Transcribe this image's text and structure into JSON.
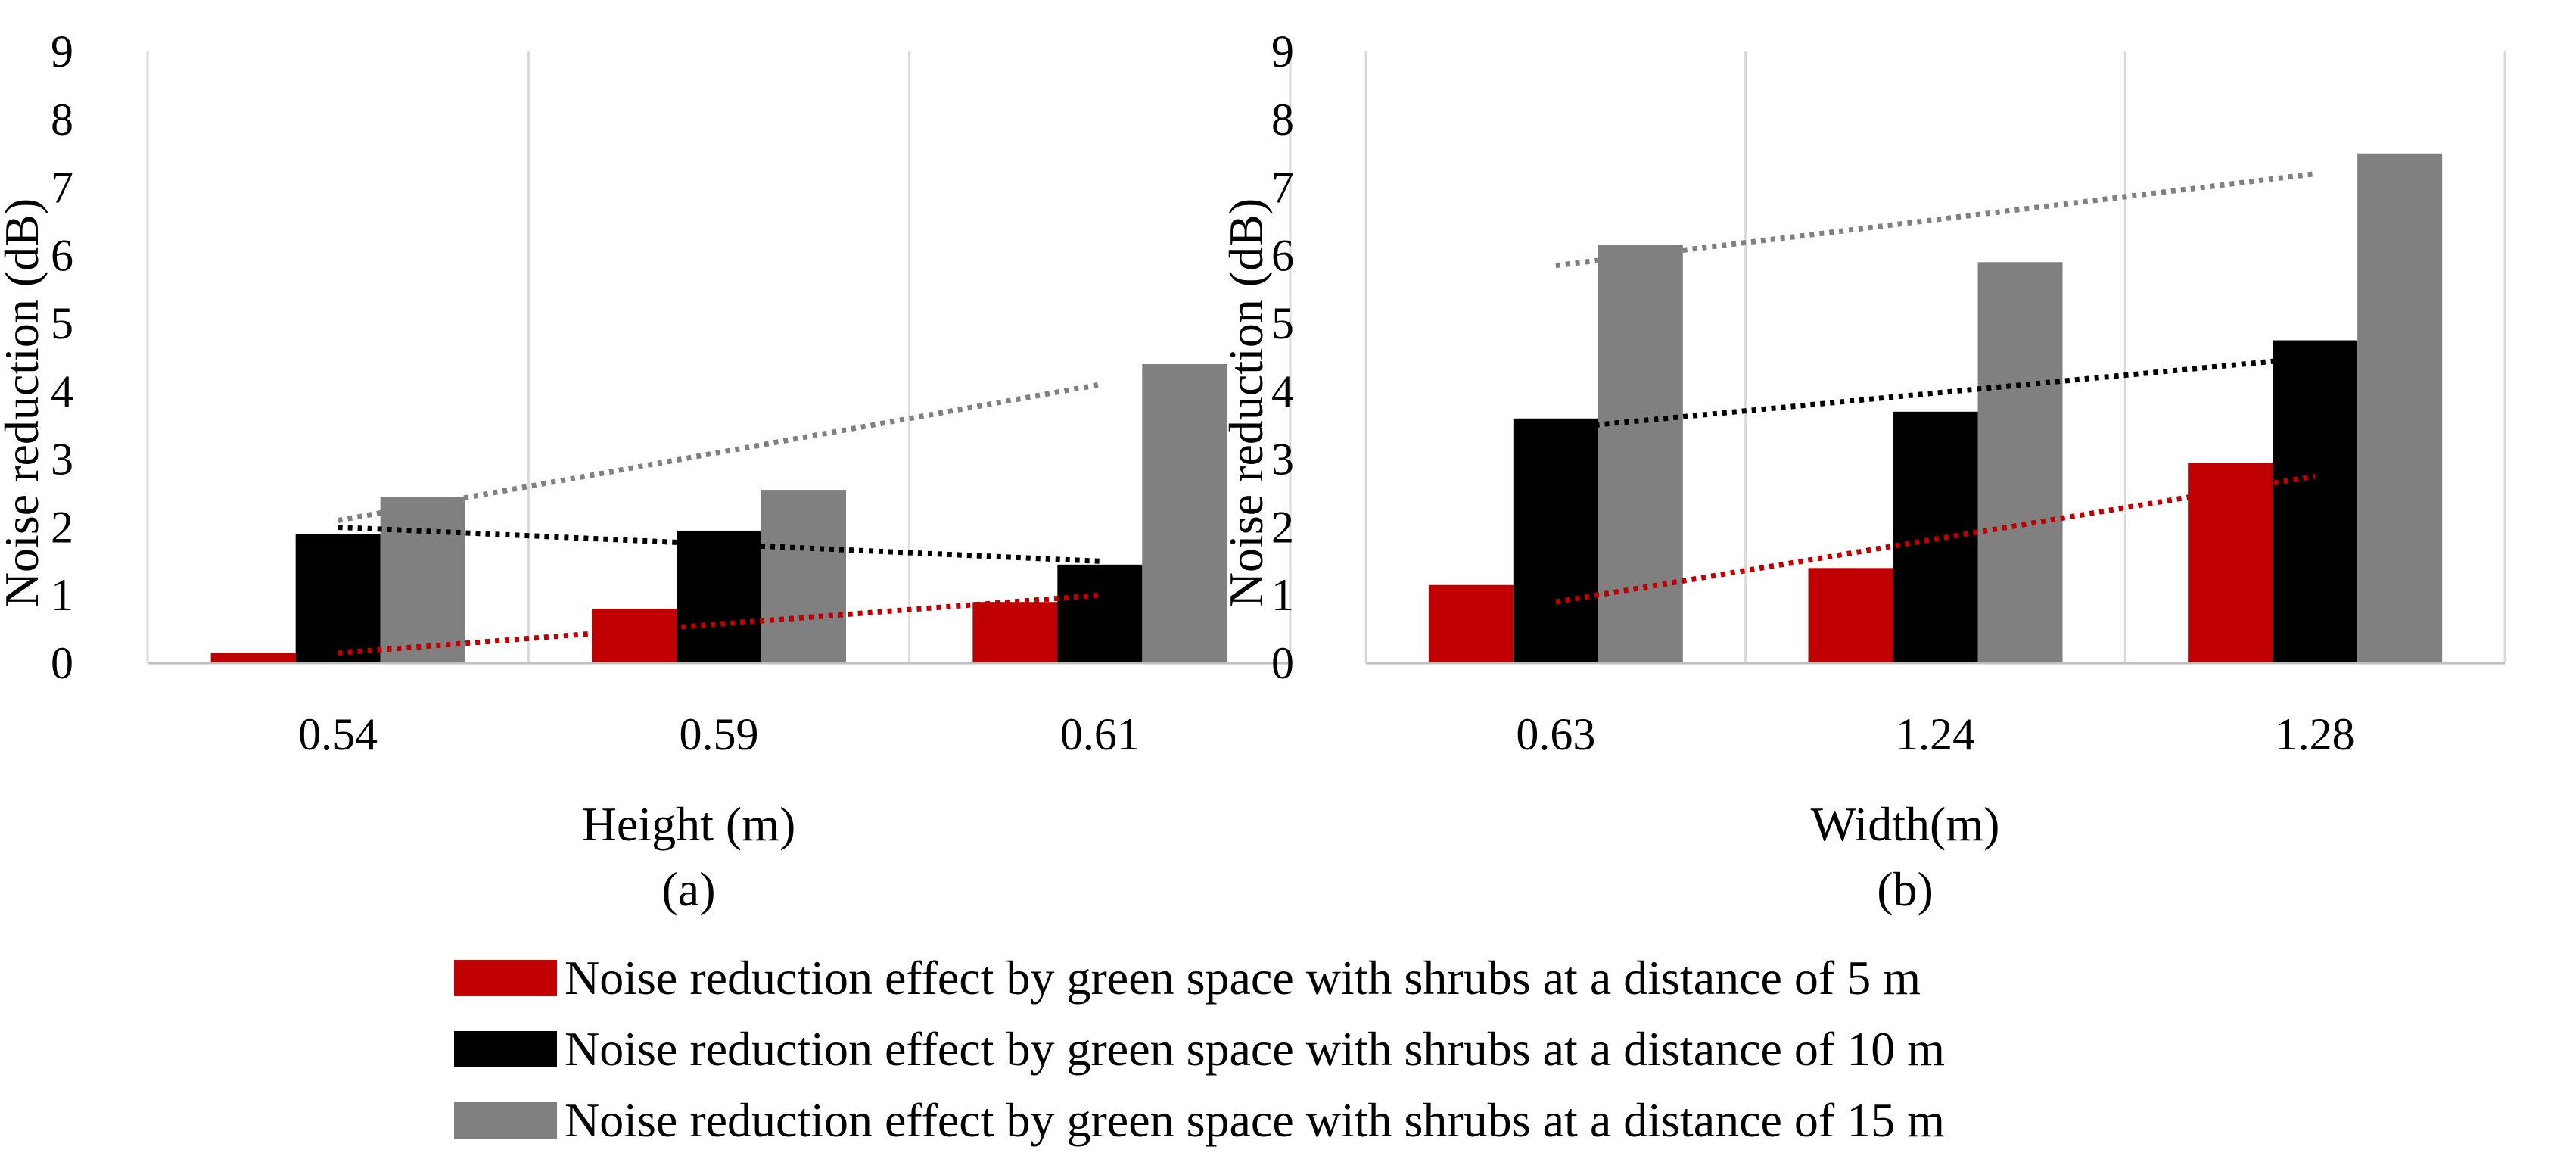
{
  "chart_data": [
    {
      "type": "bar",
      "panel_label": "(a)",
      "xlabel": "Height (m)",
      "ylabel": "Noise reduction (dB)",
      "ylim": [
        0,
        9
      ],
      "yticks": [
        "0",
        "1",
        "2",
        "3",
        "4",
        "5",
        "6",
        "7",
        "8",
        "9"
      ],
      "categories": [
        "0.54",
        "0.59",
        "0.61"
      ],
      "series": [
        {
          "name": "5 m",
          "color": "#c00000",
          "values": [
            0.15,
            0.8,
            0.9
          ]
        },
        {
          "name": "10 m",
          "color": "#000000",
          "values": [
            1.9,
            1.95,
            1.45
          ]
        },
        {
          "name": "15 m",
          "color": "#808080",
          "values": [
            2.45,
            2.55,
            4.4
          ]
        }
      ],
      "trendlines": [
        {
          "series": "5 m",
          "color": "#c00000",
          "start": 0.15,
          "end": 1.0
        },
        {
          "series": "10 m",
          "color": "#000000",
          "start": 2.0,
          "end": 1.5
        },
        {
          "series": "15 m",
          "color": "#808080",
          "start": 2.1,
          "end": 4.1
        }
      ]
    },
    {
      "type": "bar",
      "panel_label": "(b)",
      "xlabel": "Width(m)",
      "ylabel": "Noise reduction (dB)",
      "ylim": [
        0,
        9
      ],
      "yticks": [
        "0",
        "1",
        "2",
        "3",
        "4",
        "5",
        "6",
        "7",
        "8",
        "9"
      ],
      "categories": [
        "0.63",
        "1.24",
        "1.28"
      ],
      "series": [
        {
          "name": "5 m",
          "color": "#c00000",
          "values": [
            1.15,
            1.4,
            2.95
          ]
        },
        {
          "name": "10 m",
          "color": "#000000",
          "values": [
            3.6,
            3.7,
            4.75
          ]
        },
        {
          "name": "15 m",
          "color": "#808080",
          "values": [
            6.15,
            5.9,
            7.5
          ]
        }
      ],
      "trendlines": [
        {
          "series": "5 m",
          "color": "#c00000",
          "start": 0.9,
          "end": 2.75
        },
        {
          "series": "10 m",
          "color": "#000000",
          "start": 3.45,
          "end": 4.5
        },
        {
          "series": "15 m",
          "color": "#808080",
          "start": 5.85,
          "end": 7.2
        }
      ]
    }
  ],
  "legend": [
    {
      "label": "Noise reduction effect by green space with shrubs at a distance of 5 m",
      "color": "#c00000"
    },
    {
      "label": "Noise reduction effect by green space with shrubs at a distance of 10 m",
      "color": "#000000"
    },
    {
      "label": "Noise reduction effect by green space with shrubs at a distance of 15 m",
      "color": "#808080"
    }
  ]
}
